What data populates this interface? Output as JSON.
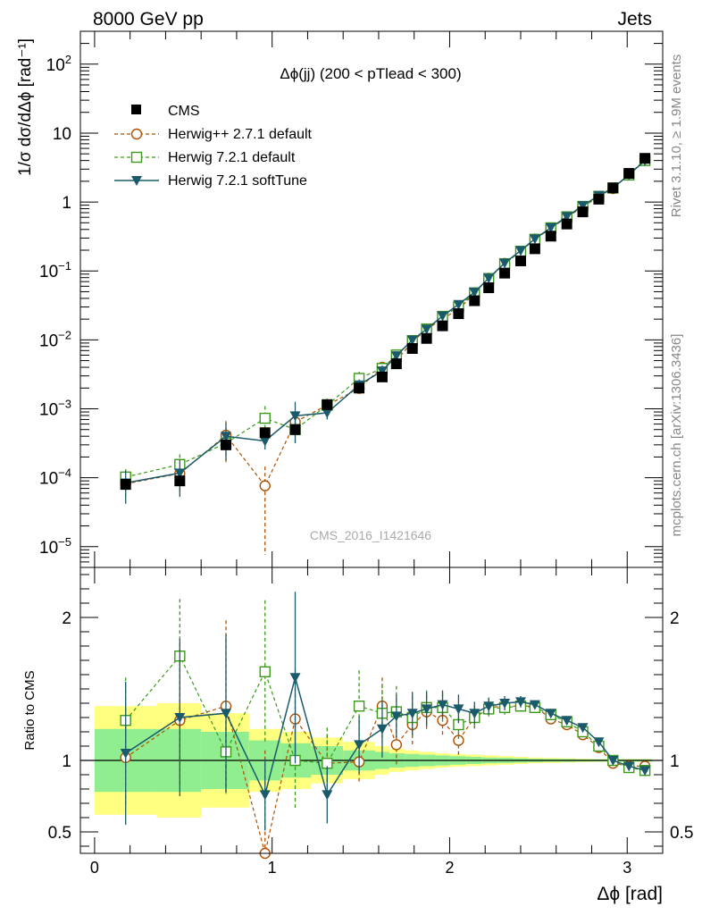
{
  "header": {
    "left": "8000 GeV pp",
    "right": "Jets"
  },
  "title": "Δϕ(jj) (200 < pTlead <  300)",
  "watermark": "CMS_2016_I1421646",
  "side_text": {
    "rivet": "Rivet 3.1.10, ≥ 1.9M events",
    "site": "mcplots.cern.ch [arXiv:1306.3436]"
  },
  "ylabel_top": "1/σ dσ/dΔϕ [rad⁻¹]",
  "ylabel_bottom": "Ratio to CMS",
  "xlabel": "Δϕ [rad]",
  "legend": {
    "cms": "CMS",
    "h271": "Herwig++ 2.7.1 default",
    "h721": "Herwig 7.2.1 default",
    "h721s": "Herwig 7.2.1 softTune"
  },
  "colors": {
    "cms": "#000000",
    "h271": "#b05000",
    "h721": "#3a9a1a",
    "h721s": "#1a5a6a",
    "band_inner": "#90ee90",
    "band_outer": "#ffff80"
  },
  "chart_data": {
    "type": "line",
    "x_axis": {
      "range": [
        -0.08,
        3.2
      ],
      "ticks": [
        0,
        1,
        2,
        3
      ]
    },
    "main_y_axis": {
      "scale": "log",
      "range": [
        5e-06,
        300
      ],
      "ticks": [
        "10^-5",
        "10^-4",
        "10^-3",
        "10^-2",
        "10^-1",
        "1",
        "10",
        "10^2"
      ]
    },
    "ratio_y_axis": {
      "range": [
        0.35,
        2.35
      ],
      "ticks": [
        0.5,
        1,
        2
      ]
    },
    "x": [
      0.175,
      0.48,
      0.74,
      0.96,
      1.13,
      1.31,
      1.49,
      1.62,
      1.7,
      1.79,
      1.87,
      1.96,
      2.05,
      2.14,
      2.22,
      2.31,
      2.4,
      2.48,
      2.57,
      2.66,
      2.75,
      2.84,
      2.92,
      3.01,
      3.1
    ],
    "cms": [
      8e-05,
      9e-05,
      0.0003,
      0.00045,
      0.0005,
      0.00115,
      0.002,
      0.0029,
      0.0045,
      0.0075,
      0.0105,
      0.016,
      0.024,
      0.037,
      0.057,
      0.093,
      0.14,
      0.21,
      0.32,
      0.48,
      0.72,
      1.1,
      1.6,
      2.6,
      4.3
    ],
    "series": [
      {
        "name": "Herwig++ 2.7.1 default",
        "key": "h271",
        "marker": "open-circle",
        "ratio": [
          1.02,
          1.28,
          1.38,
          0.17,
          1.29,
          0.98,
          0.99,
          1.38,
          1.11,
          1.25,
          1.34,
          1.28,
          1.14,
          1.3,
          1.37,
          1.38,
          1.38,
          1.38,
          1.29,
          1.25,
          1.18,
          1.09,
          0.98,
          0.96,
          0.96
        ],
        "ratio_err": [
          0.35,
          0.45,
          0.6,
          0.9,
          0.35,
          0.2,
          0.15,
          0.2,
          0.15,
          0.15,
          0.12,
          0.1,
          0.1,
          0.08,
          0.06,
          0.05,
          0.04,
          0.03,
          0.03,
          0.03,
          0.02,
          0.02,
          0.02,
          0.02,
          0.02
        ]
      },
      {
        "name": "Herwig 7.2.1 default",
        "key": "h721",
        "marker": "open-square",
        "ratio": [
          1.28,
          1.73,
          1.06,
          1.62,
          1.0,
          0.98,
          1.38,
          1.33,
          1.34,
          1.3,
          1.37,
          1.37,
          1.25,
          1.3,
          1.36,
          1.37,
          1.38,
          1.37,
          1.32,
          1.27,
          1.2,
          1.1,
          1.0,
          0.95,
          0.93
        ],
        "ratio_err": [
          0.3,
          0.4,
          0.3,
          0.5,
          0.35,
          0.25,
          0.25,
          0.2,
          0.18,
          0.15,
          0.12,
          0.1,
          0.1,
          0.08,
          0.06,
          0.05,
          0.04,
          0.03,
          0.03,
          0.03,
          0.02,
          0.02,
          0.02,
          0.02,
          0.02
        ]
      },
      {
        "name": "Herwig 7.2.1 softTune",
        "key": "h721s",
        "marker": "filled-down-triangle",
        "ratio": [
          1.05,
          1.3,
          1.33,
          0.76,
          1.58,
          0.76,
          1.11,
          1.22,
          1.31,
          1.33,
          1.36,
          1.39,
          1.36,
          1.33,
          1.38,
          1.4,
          1.41,
          1.39,
          1.33,
          1.28,
          1.23,
          1.13,
          1.0,
          0.96,
          0.93
        ],
        "ratio_err": [
          0.5,
          0.55,
          0.55,
          0.25,
          0.6,
          0.2,
          0.2,
          0.2,
          0.15,
          0.15,
          0.12,
          0.1,
          0.1,
          0.08,
          0.06,
          0.05,
          0.04,
          0.03,
          0.03,
          0.03,
          0.02,
          0.02,
          0.02,
          0.02,
          0.02
        ]
      }
    ],
    "uncertainty_band": {
      "x_edges": [
        0.0,
        0.35,
        0.6,
        0.87,
        1.05,
        1.22,
        1.4,
        1.58,
        1.66,
        1.75,
        1.83,
        1.92,
        2.0,
        2.09,
        2.18,
        2.27,
        2.36,
        2.44,
        2.53,
        2.62,
        2.71,
        2.8,
        2.88,
        2.97,
        3.05,
        3.14
      ],
      "inner": [
        0.22,
        0.22,
        0.2,
        0.14,
        0.12,
        0.1,
        0.07,
        0.06,
        0.05,
        0.045,
        0.04,
        0.035,
        0.03,
        0.025,
        0.02,
        0.018,
        0.015,
        0.012,
        0.01,
        0.01,
        0.008,
        0.008,
        0.008,
        0.008,
        0.008
      ],
      "outer": [
        0.38,
        0.4,
        0.33,
        0.22,
        0.2,
        0.16,
        0.13,
        0.1,
        0.08,
        0.07,
        0.06,
        0.05,
        0.045,
        0.04,
        0.035,
        0.03,
        0.025,
        0.02,
        0.018,
        0.015,
        0.012,
        0.01,
        0.01,
        0.01,
        0.01
      ]
    }
  }
}
